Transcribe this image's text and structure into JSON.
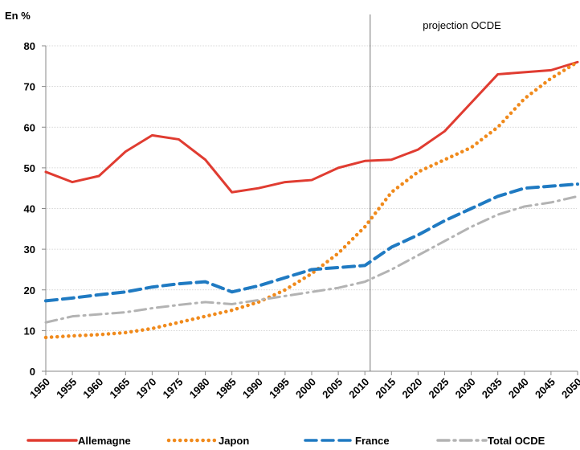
{
  "chart_data": {
    "type": "line",
    "y_label": "En %",
    "annotation": "projection OCDE",
    "projection_x": 2011,
    "x": [
      1950,
      1955,
      1960,
      1965,
      1970,
      1975,
      1980,
      1985,
      1990,
      1995,
      2000,
      2005,
      2010,
      2015,
      2020,
      2025,
      2030,
      2035,
      2040,
      2045,
      2050
    ],
    "xlim": [
      1950,
      2050
    ],
    "xticks": [
      1950,
      1955,
      1960,
      1965,
      1970,
      1975,
      1980,
      1985,
      1990,
      1995,
      2000,
      2005,
      2010,
      2015,
      2020,
      2025,
      2030,
      2035,
      2040,
      2045,
      2050
    ],
    "ylim": [
      0,
      80
    ],
    "yticks": [
      0,
      10,
      20,
      30,
      40,
      50,
      60,
      70,
      80
    ],
    "grid": true,
    "legend": "bottom",
    "series": [
      {
        "name": "Allemagne",
        "color": "#e03c31",
        "style": "solid",
        "values": [
          49,
          46.5,
          48,
          54,
          58,
          57,
          52,
          44,
          45,
          46.5,
          47,
          50,
          51.7,
          52,
          54.5,
          59,
          66,
          73,
          73.5,
          74,
          76
        ]
      },
      {
        "name": "Japon",
        "color": "#f08a1c",
        "style": "dotted",
        "values": [
          8.3,
          8.7,
          9,
          9.5,
          10.5,
          12,
          13.5,
          15,
          17,
          20,
          24,
          29,
          35.5,
          44,
          49,
          52,
          55,
          60,
          67,
          72,
          76
        ]
      },
      {
        "name": "France",
        "color": "#1f7ac2",
        "style": "dashed",
        "values": [
          17.3,
          18,
          18.8,
          19.5,
          20.7,
          21.5,
          22,
          19.5,
          21,
          23,
          25,
          25.5,
          26,
          30.5,
          33.5,
          37,
          40,
          43,
          45,
          45.5,
          46
        ]
      },
      {
        "name": "Total OCDE",
        "color": "#b3b3b3",
        "style": "dashdot",
        "values": [
          12,
          13.5,
          14,
          14.5,
          15.5,
          16.3,
          17,
          16.5,
          17.5,
          18.5,
          19.5,
          20.5,
          22,
          25,
          28.5,
          32,
          35.5,
          38.5,
          40.5,
          41.5,
          43
        ]
      }
    ]
  }
}
